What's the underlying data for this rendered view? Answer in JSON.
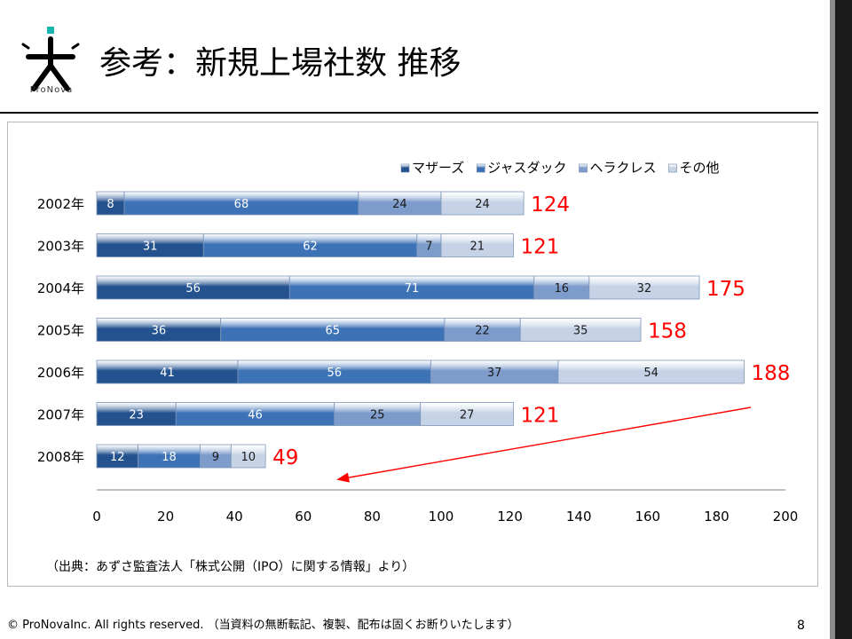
{
  "slide": {
    "logo_text": "ProNova",
    "title": "参考：新規上場社数 推移",
    "source": "（出典：あずさ監査法人「株式公開（IPO）に関する情報」より）",
    "footer": "© ProNovaInc. All rights reserved. （当資料の無断転記、複製、配布は固くお断りいたします）",
    "page_number": "8"
  },
  "chart_data": {
    "type": "bar",
    "orientation": "horizontal",
    "stacked": true,
    "categories": [
      "2002年",
      "2003年",
      "2004年",
      "2005年",
      "2006年",
      "2007年",
      "2008年"
    ],
    "series": [
      {
        "name": "マザーズ",
        "values": [
          8,
          31,
          56,
          36,
          41,
          23,
          12
        ],
        "color": "#24528f"
      },
      {
        "name": "ジャスダック",
        "values": [
          68,
          62,
          71,
          65,
          56,
          46,
          18
        ],
        "color": "#3d72b6"
      },
      {
        "name": "ヘラクレス",
        "values": [
          24,
          7,
          16,
          22,
          37,
          25,
          9
        ],
        "color": "#7d9ccc"
      },
      {
        "name": "その他",
        "values": [
          24,
          21,
          32,
          35,
          54,
          27,
          10
        ],
        "color": "#c6d3e6"
      }
    ],
    "totals": [
      "124",
      "121",
      "175",
      "158",
      "188",
      "121",
      "49"
    ],
    "xlim": [
      0,
      200
    ],
    "xticks": [
      0,
      20,
      40,
      60,
      80,
      100,
      120,
      140,
      160,
      180,
      200
    ],
    "legend_position": "top-right",
    "total_label_color": "#ff0000",
    "annotation": {
      "type": "arrow",
      "from_category": "2006年",
      "to_category": "2008年",
      "color": "#ff0000"
    }
  }
}
